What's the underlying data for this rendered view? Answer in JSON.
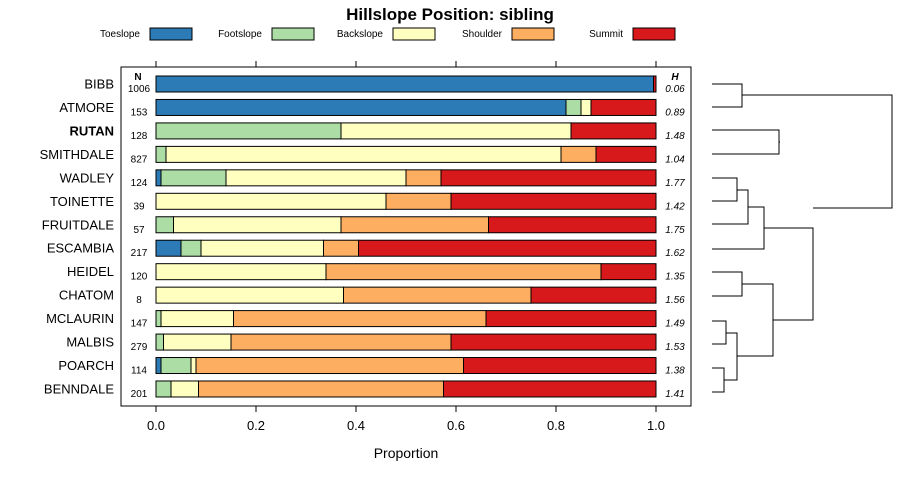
{
  "chart_data": {
    "type": "bar",
    "orientation": "horizontal-stacked",
    "title": "Hillslope Position: sibling",
    "xlabel": "Proportion",
    "xlim": [
      0,
      1
    ],
    "x_ticks": [
      "0.0",
      "0.2",
      "0.4",
      "0.6",
      "0.8",
      "1.0"
    ],
    "n_header": "N",
    "h_header": "H",
    "legend": [
      {
        "name": "Toeslope",
        "color": "#2C7BB6"
      },
      {
        "name": "Footslope",
        "color": "#ABDDA4"
      },
      {
        "name": "Backslope",
        "color": "#FFFFBF"
      },
      {
        "name": "Shoulder",
        "color": "#FDAE61"
      },
      {
        "name": "Summit",
        "color": "#D7191C"
      }
    ],
    "categories": [
      "BIBB",
      "ATMORE",
      "RUTAN",
      "SMITHDALE",
      "WADLEY",
      "TOINETTE",
      "FRUITDALE",
      "ESCAMBIA",
      "HEIDEL",
      "CHATOM",
      "MCLAURIN",
      "MALBIS",
      "POARCH",
      "BENNDALE"
    ],
    "highlight": "RUTAN",
    "n": [
      "1006",
      "153",
      "128",
      "827",
      "124",
      "39",
      "57",
      "217",
      "120",
      "8",
      "147",
      "279",
      "114",
      "201"
    ],
    "h": [
      "0.06",
      "0.89",
      "1.48",
      "1.04",
      "1.77",
      "1.42",
      "1.75",
      "1.62",
      "1.35",
      "1.56",
      "1.49",
      "1.53",
      "1.38",
      "1.41"
    ],
    "series": [
      {
        "name": "Toeslope",
        "values": [
          0.995,
          0.82,
          0.0,
          0.0,
          0.01,
          0.0,
          0.0,
          0.05,
          0.0,
          0.0,
          0.0,
          0.0,
          0.01,
          0.0
        ]
      },
      {
        "name": "Footslope",
        "values": [
          0.0,
          0.03,
          0.37,
          0.02,
          0.13,
          0.0,
          0.035,
          0.04,
          0.0,
          0.0,
          0.01,
          0.015,
          0.06,
          0.03
        ]
      },
      {
        "name": "Backslope",
        "values": [
          0.0,
          0.02,
          0.46,
          0.79,
          0.36,
          0.46,
          0.335,
          0.245,
          0.34,
          0.375,
          0.145,
          0.135,
          0.01,
          0.055
        ]
      },
      {
        "name": "Shoulder",
        "values": [
          0.0,
          0.0,
          0.0,
          0.07,
          0.07,
          0.13,
          0.295,
          0.07,
          0.55,
          0.375,
          0.505,
          0.44,
          0.535,
          0.49
        ]
      },
      {
        "name": "Summit",
        "values": [
          0.005,
          0.13,
          0.17,
          0.12,
          0.43,
          0.41,
          0.335,
          0.595,
          0.11,
          0.25,
          0.34,
          0.41,
          0.385,
          0.425
        ]
      }
    ]
  }
}
